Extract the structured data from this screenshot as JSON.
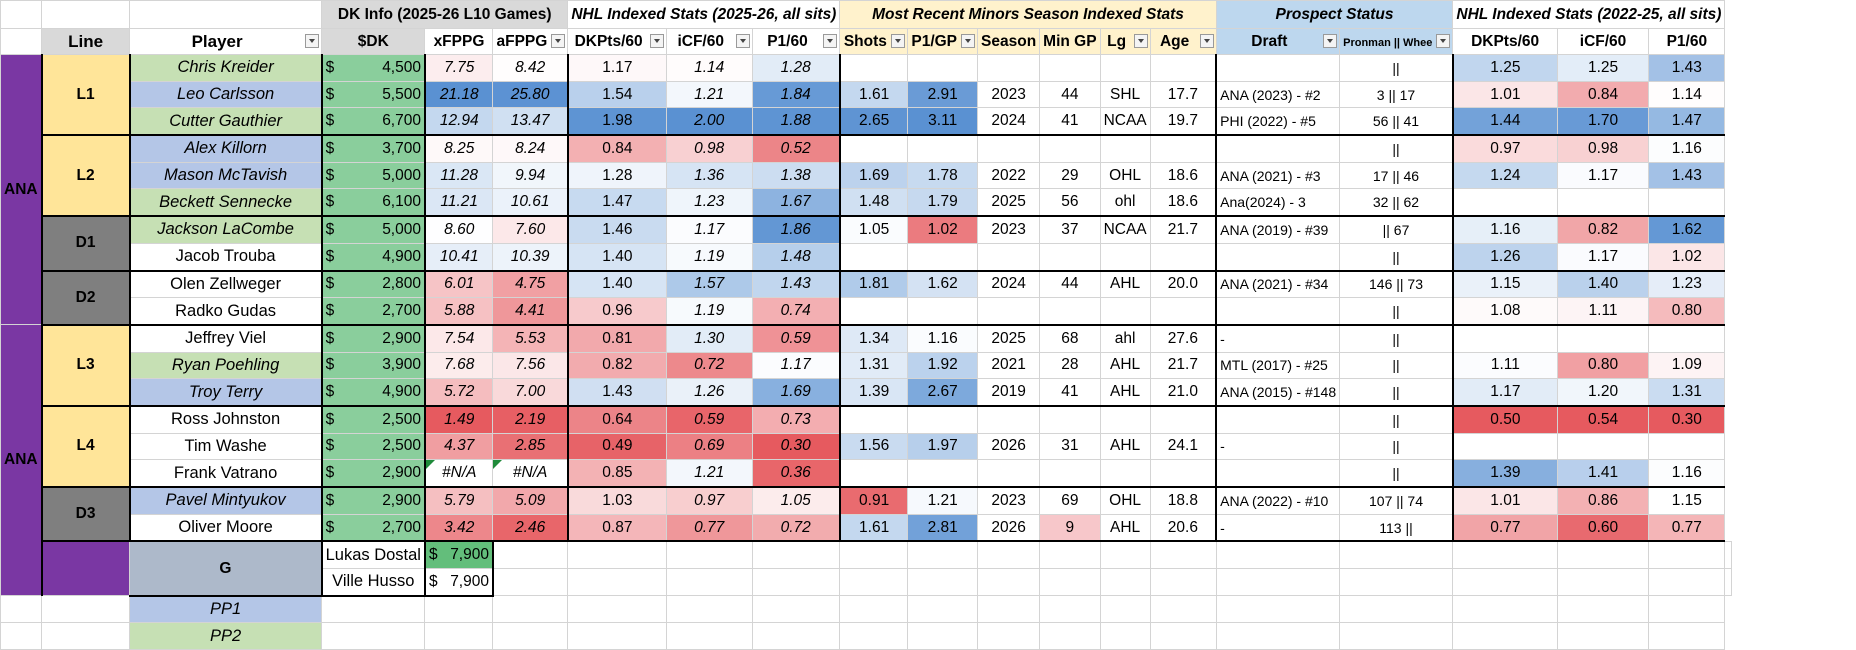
{
  "group_headers": {
    "dk": "DK Info (2025-26 L10 Games)",
    "nhl": "NHL Indexed Stats (2025-26, all sits)",
    "minors": "Most Recent Minors Season Indexed Stats",
    "prospect": "Prospect Status",
    "nhl3": "NHL Indexed Stats (2022-25, all sits)"
  },
  "columns": {
    "line": "Line",
    "player": "Player",
    "dk": "$DK",
    "xfppg": "xFPPG",
    "afppg": "aFPPG",
    "dkpts": "DKPts/60",
    "icf": "iCF/60",
    "p160": "P1/60",
    "shots": "Shots",
    "p1gp": "P1/GP",
    "season": "Season",
    "mingp": "Min GP",
    "lg": "Lg",
    "age": "Age",
    "draft": "Draft",
    "pronman": "Pronman || Whee",
    "dkpts3": "DKPts/60",
    "icf3": "iCF/60",
    "p1603": "P1/60"
  },
  "teams": [
    "ANA",
    "ANA"
  ],
  "lines": {
    "L1": "L1",
    "L2": "L2",
    "D1": "D1",
    "D2": "D2",
    "L3": "L3",
    "L4": "L4",
    "D3": "D3",
    "G": "G"
  },
  "pp": [
    "PP1",
    "PP2"
  ],
  "currency_symbol": "$",
  "rows": [
    {
      "player": "Chris Kreider",
      "dk": "4,500",
      "xfppg": "7.75",
      "afppg": "8.42",
      "dkpts": "1.17",
      "icf": "1.14",
      "p160": "1.28",
      "shots": "",
      "p1gp": "",
      "season": "",
      "mingp": "",
      "lg": "",
      "age": "",
      "draft": "",
      "pron": "||",
      "dkpts3": "1.25",
      "icf3": "1.25",
      "p1603": "1.43"
    },
    {
      "player": "Leo Carlsson",
      "dk": "5,500",
      "xfppg": "21.18",
      "afppg": "25.80",
      "dkpts": "1.54",
      "icf": "1.21",
      "p160": "1.84",
      "shots": "1.61",
      "p1gp": "2.91",
      "season": "2023",
      "mingp": "44",
      "lg": "SHL",
      "age": "17.7",
      "draft": "ANA (2023) - #2",
      "pron": "3 || 17",
      "dkpts3": "1.01",
      "icf3": "0.84",
      "p1603": "1.14"
    },
    {
      "player": "Cutter Gauthier",
      "dk": "6,700",
      "xfppg": "12.94",
      "afppg": "13.47",
      "dkpts": "1.98",
      "icf": "2.00",
      "p160": "1.88",
      "shots": "2.65",
      "p1gp": "3.11",
      "season": "2024",
      "mingp": "41",
      "lg": "NCAA",
      "age": "19.7",
      "draft": "PHI (2022) - #5",
      "pron": "56 || 41",
      "dkpts3": "1.44",
      "icf3": "1.70",
      "p1603": "1.47"
    },
    {
      "player": "Alex Killorn",
      "dk": "3,700",
      "xfppg": "8.25",
      "afppg": "8.24",
      "dkpts": "0.84",
      "icf": "0.98",
      "p160": "0.52",
      "shots": "",
      "p1gp": "",
      "season": "",
      "mingp": "",
      "lg": "",
      "age": "",
      "draft": "",
      "pron": "||",
      "dkpts3": "0.97",
      "icf3": "0.98",
      "p1603": "1.16"
    },
    {
      "player": "Mason McTavish",
      "dk": "5,000",
      "xfppg": "11.28",
      "afppg": "9.94",
      "dkpts": "1.28",
      "icf": "1.36",
      "p160": "1.38",
      "shots": "1.69",
      "p1gp": "1.78",
      "season": "2022",
      "mingp": "29",
      "lg": "OHL",
      "age": "18.6",
      "draft": "ANA (2021) - #3",
      "pron": "17 || 46",
      "dkpts3": "1.24",
      "icf3": "1.17",
      "p1603": "1.43"
    },
    {
      "player": "Beckett Sennecke",
      "dk": "6,100",
      "xfppg": "11.21",
      "afppg": "10.61",
      "dkpts": "1.47",
      "icf": "1.23",
      "p160": "1.67",
      "shots": "1.48",
      "p1gp": "1.79",
      "season": "2025",
      "mingp": "56",
      "lg": "ohl",
      "age": "18.6",
      "draft": "Ana(2024) - 3",
      "pron": "32 || 62",
      "dkpts3": "",
      "icf3": "",
      "p1603": ""
    },
    {
      "player": "Jackson LaCombe",
      "dk": "5,000",
      "xfppg": "8.60",
      "afppg": "7.60",
      "dkpts": "1.46",
      "icf": "1.17",
      "p160": "1.86",
      "shots": "1.05",
      "p1gp": "1.02",
      "season": "2023",
      "mingp": "37",
      "lg": "NCAA",
      "age": "21.7",
      "draft": "ANA (2019) - #39",
      "pron": "|| 67",
      "dkpts3": "1.16",
      "icf3": "0.82",
      "p1603": "1.62"
    },
    {
      "player": "Jacob Trouba",
      "dk": "4,900",
      "xfppg": "10.41",
      "afppg": "10.39",
      "dkpts": "1.40",
      "icf": "1.19",
      "p160": "1.48",
      "shots": "",
      "p1gp": "",
      "season": "",
      "mingp": "",
      "lg": "",
      "age": "",
      "draft": "",
      "pron": "||",
      "dkpts3": "1.26",
      "icf3": "1.17",
      "p1603": "1.02"
    },
    {
      "player": "Olen Zellweger",
      "dk": "2,800",
      "xfppg": "6.01",
      "afppg": "4.75",
      "dkpts": "1.40",
      "icf": "1.57",
      "p160": "1.43",
      "shots": "1.81",
      "p1gp": "1.62",
      "season": "2024",
      "mingp": "44",
      "lg": "AHL",
      "age": "20.0",
      "draft": "ANA (2021) - #34",
      "pron": "146 || 73",
      "dkpts3": "1.15",
      "icf3": "1.40",
      "p1603": "1.23"
    },
    {
      "player": "Radko Gudas",
      "dk": "2,700",
      "xfppg": "5.88",
      "afppg": "4.41",
      "dkpts": "0.96",
      "icf": "1.19",
      "p160": "0.74",
      "shots": "",
      "p1gp": "",
      "season": "",
      "mingp": "",
      "lg": "",
      "age": "",
      "draft": "",
      "pron": "||",
      "dkpts3": "1.08",
      "icf3": "1.11",
      "p1603": "0.80"
    },
    {
      "player": "Jeffrey Viel",
      "dk": "2,900",
      "xfppg": "7.54",
      "afppg": "5.53",
      "dkpts": "0.81",
      "icf": "1.30",
      "p160": "0.59",
      "shots": "1.34",
      "p1gp": "1.16",
      "season": "2025",
      "mingp": "68",
      "lg": "ahl",
      "age": "27.6",
      "draft": "-",
      "pron": "||",
      "dkpts3": "",
      "icf3": "",
      "p1603": ""
    },
    {
      "player": "Ryan Poehling",
      "dk": "3,900",
      "xfppg": "7.68",
      "afppg": "7.56",
      "dkpts": "0.82",
      "icf": "0.72",
      "p160": "1.17",
      "shots": "1.31",
      "p1gp": "1.92",
      "season": "2021",
      "mingp": "28",
      "lg": "AHL",
      "age": "21.7",
      "draft": "MTL (2017) - #25",
      "pron": "||",
      "dkpts3": "1.11",
      "icf3": "0.80",
      "p1603": "1.09"
    },
    {
      "player": "Troy Terry",
      "dk": "4,900",
      "xfppg": "5.72",
      "afppg": "7.00",
      "dkpts": "1.43",
      "icf": "1.26",
      "p160": "1.69",
      "shots": "1.39",
      "p1gp": "2.67",
      "season": "2019",
      "mingp": "41",
      "lg": "AHL",
      "age": "21.0",
      "draft": "ANA (2015) - #148",
      "pron": "||",
      "dkpts3": "1.17",
      "icf3": "1.20",
      "p1603": "1.31"
    },
    {
      "player": "Ross Johnston",
      "dk": "2,500",
      "xfppg": "1.49",
      "afppg": "2.19",
      "dkpts": "0.64",
      "icf": "0.59",
      "p160": "0.73",
      "shots": "",
      "p1gp": "",
      "season": "",
      "mingp": "",
      "lg": "",
      "age": "",
      "draft": "",
      "pron": "||",
      "dkpts3": "0.50",
      "icf3": "0.54",
      "p1603": "0.30"
    },
    {
      "player": "Tim Washe",
      "dk": "2,500",
      "xfppg": "4.37",
      "afppg": "2.85",
      "dkpts": "0.49",
      "icf": "0.69",
      "p160": "0.30",
      "shots": "1.56",
      "p1gp": "1.97",
      "season": "2026",
      "mingp": "31",
      "lg": "AHL",
      "age": "24.1",
      "draft": "-",
      "pron": "||",
      "dkpts3": "",
      "icf3": "",
      "p1603": ""
    },
    {
      "player": "Frank Vatrano",
      "dk": "2,900",
      "xfppg": "#N/A",
      "afppg": "#N/A",
      "dkpts": "0.85",
      "icf": "1.21",
      "p160": "0.36",
      "shots": "",
      "p1gp": "",
      "season": "",
      "mingp": "",
      "lg": "",
      "age": "",
      "draft": "",
      "pron": "||",
      "dkpts3": "1.39",
      "icf3": "1.41",
      "p1603": "1.16"
    },
    {
      "player": "Pavel Mintyukov",
      "dk": "2,900",
      "xfppg": "5.79",
      "afppg": "5.09",
      "dkpts": "1.03",
      "icf": "0.97",
      "p160": "1.05",
      "shots": "0.91",
      "p1gp": "1.21",
      "season": "2023",
      "mingp": "69",
      "lg": "OHL",
      "age": "18.8",
      "draft": "ANA (2022) - #10",
      "pron": "107 || 74",
      "dkpts3": "1.01",
      "icf3": "0.86",
      "p1603": "1.15"
    },
    {
      "player": "Oliver Moore",
      "dk": "2,700",
      "xfppg": "3.42",
      "afppg": "2.46",
      "dkpts": "0.87",
      "icf": "0.77",
      "p160": "0.72",
      "shots": "1.61",
      "p1gp": "2.81",
      "season": "2026",
      "mingp": "9",
      "lg": "AHL",
      "age": "20.6",
      "draft": "-",
      "pron": "113 ||",
      "dkpts3": "0.77",
      "icf3": "0.60",
      "p1603": "0.77"
    },
    {
      "player": "Lukas Dostal",
      "dk": "7,900",
      "xfppg": "",
      "afppg": "",
      "dkpts": "",
      "icf": "",
      "p160": "",
      "shots": "",
      "p1gp": "",
      "season": "",
      "mingp": "",
      "lg": "",
      "age": "",
      "draft": "",
      "pron": "",
      "dkpts3": "",
      "icf3": "",
      "p1603": ""
    },
    {
      "player": "Ville Husso",
      "dk": "7,900",
      "xfppg": "",
      "afppg": "",
      "dkpts": "",
      "icf": "",
      "p160": "",
      "shots": "",
      "p1gp": "",
      "season": "",
      "mingp": "",
      "lg": "",
      "age": "",
      "draft": "",
      "pron": "",
      "dkpts3": "",
      "icf3": "",
      "p1603": ""
    }
  ],
  "colors": {
    "team_purple": "#7a37a3",
    "line_yellow": "#ffe599",
    "d_gray": "#7f7f7f",
    "g_blue": "#adb9ca",
    "header_gray": "#d9d9d9",
    "header_yellow": "#fff2cc",
    "header_blue": "#bdd7ee",
    "player_green": "#c6e0b4",
    "player_blue": "#b4c6e7",
    "dk_green": "#63be7b"
  }
}
